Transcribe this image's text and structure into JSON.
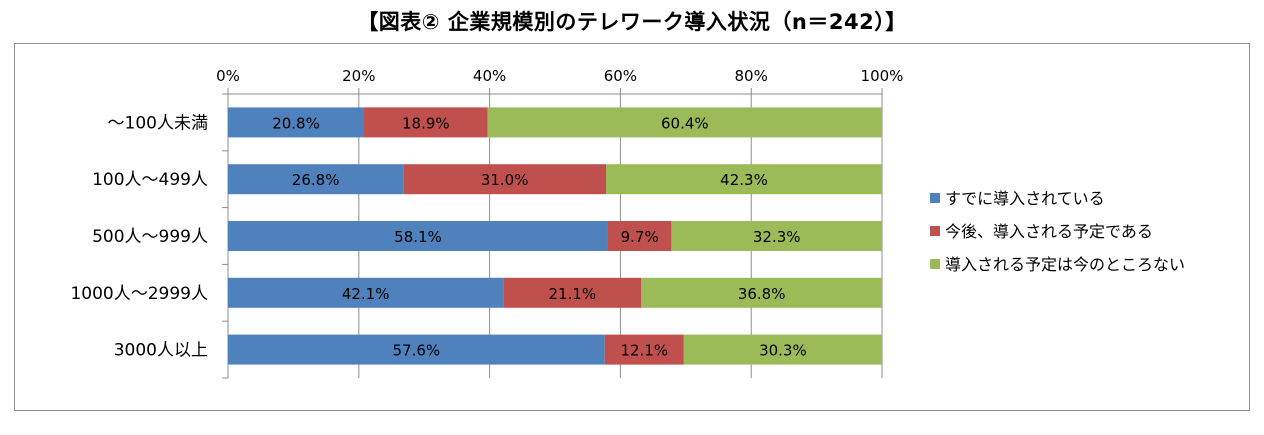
{
  "chart_data": {
    "type": "bar",
    "orientation": "horizontal",
    "stacked": true,
    "percent": true,
    "title": "【図表②  企業規模別のテレワーク導入状況（n＝242）】",
    "categories": [
      "～100人未満",
      "100人～499人",
      "500人～999人",
      "1000人～2999人",
      "3000人以上"
    ],
    "series": [
      {
        "name": "すでに導入されている",
        "color": "#4f81bd",
        "values": [
          20.8,
          26.8,
          58.1,
          42.1,
          57.6
        ],
        "labels": [
          "20.8%",
          "26.8%",
          "58.1%",
          "42.1%",
          "57.6%"
        ]
      },
      {
        "name": "今後、導入される予定である",
        "color": "#c0504d",
        "values": [
          18.9,
          31.0,
          9.7,
          21.1,
          12.1
        ],
        "labels": [
          "18.9%",
          "31.0%",
          "9.7%",
          "21.1%",
          "12.1%"
        ]
      },
      {
        "name": "導入される予定は今のところない",
        "color": "#9bbb59",
        "values": [
          60.4,
          42.3,
          32.3,
          36.8,
          30.3
        ],
        "labels": [
          "60.4%",
          "42.3%",
          "32.3%",
          "36.8%",
          "30.3%"
        ]
      }
    ],
    "xlim": [
      0,
      100
    ],
    "xticks": [
      "0%",
      "20%",
      "40%",
      "60%",
      "80%",
      "100%"
    ],
    "xaxis_position": "top",
    "grid": true,
    "legend_position": "right"
  }
}
